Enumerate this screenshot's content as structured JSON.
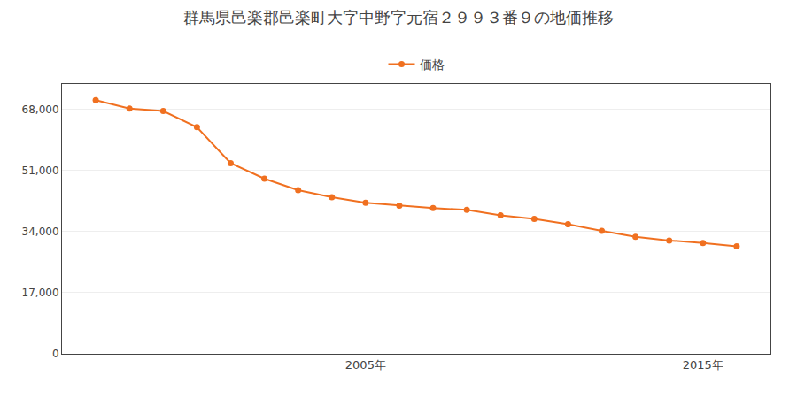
{
  "chart_data": {
    "type": "line",
    "title": "群馬県邑楽郡邑楽町大字中野字元宿２９９３番９の地価推移",
    "x": [
      1997,
      1998,
      1999,
      2000,
      2001,
      2002,
      2003,
      2004,
      2005,
      2006,
      2007,
      2008,
      2009,
      2010,
      2011,
      2012,
      2013,
      2014,
      2015,
      2016
    ],
    "series": [
      {
        "name": "価格",
        "color": "#f07020",
        "values": [
          70500,
          68200,
          67500,
          63000,
          53000,
          48700,
          45500,
          43500,
          42000,
          41200,
          40500,
          40000,
          38500,
          37500,
          36000,
          34200,
          32500,
          31500,
          30800,
          29900
        ]
      }
    ],
    "xlim": [
      1996,
      2017
    ],
    "xticks": [
      {
        "value": 2005,
        "label": "2005年"
      },
      {
        "value": 2015,
        "label": "2015年"
      }
    ],
    "ylim": [
      0,
      75000
    ],
    "yticks": [
      0,
      {
        "value": 17000,
        "label": "17,000"
      },
      {
        "value": 34000,
        "label": "34,000"
      },
      {
        "value": 51000,
        "label": "51,000"
      },
      {
        "value": 68000,
        "label": "68,000"
      }
    ],
    "grid": true,
    "legend": "top",
    "marker": "circle",
    "line_style": "solid"
  }
}
